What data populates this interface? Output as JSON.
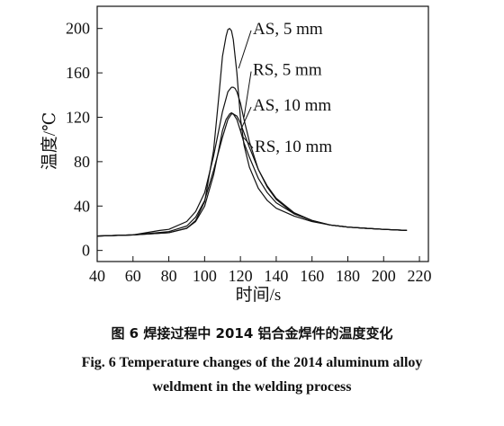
{
  "caption": {
    "cn": "图 6    焊接过程中 2014 铝合金焊件的温度变化",
    "en_line1": "Fig. 6    Temperature changes of the 2014 aluminum alloy",
    "en_line2": "weldment in the welding process"
  },
  "chart_data": {
    "type": "line",
    "title": "",
    "xlabel": "时间/s",
    "ylabel": "温度/℃",
    "xlim": [
      40,
      225
    ],
    "ylim": [
      -10,
      220
    ],
    "xticks": [
      40,
      60,
      80,
      100,
      120,
      140,
      160,
      180,
      200,
      220
    ],
    "yticks": [
      0,
      40,
      80,
      120,
      160,
      200
    ],
    "grid": false,
    "series": [
      {
        "name": "AS, 5 mm",
        "x": [
          40,
          60,
          80,
          90,
          95,
          100,
          105,
          108,
          110,
          112,
          113,
          114,
          115,
          116,
          118,
          120,
          122,
          125,
          130,
          135,
          140,
          150,
          160,
          170,
          180,
          190,
          200,
          213
        ],
        "y": [
          13,
          14,
          16,
          20,
          27,
          44,
          90,
          140,
          175,
          193,
          199,
          200,
          198,
          190,
          160,
          120,
          95,
          75,
          56,
          45,
          38,
          31,
          26,
          23,
          21,
          20,
          19,
          18
        ]
      },
      {
        "name": "RS, 5 mm",
        "x": [
          40,
          60,
          75,
          80,
          90,
          95,
          100,
          105,
          110,
          113,
          115,
          116,
          117,
          118,
          120,
          122,
          125,
          130,
          135,
          140,
          150,
          160,
          170,
          180,
          190,
          200,
          213
        ],
        "y": [
          13,
          14,
          18,
          19,
          26,
          35,
          52,
          85,
          125,
          143,
          147,
          147,
          146,
          143,
          133,
          118,
          98,
          73,
          57,
          46,
          33,
          27,
          23,
          21,
          20,
          19,
          18
        ]
      },
      {
        "name": "AS, 10 mm",
        "x": [
          40,
          60,
          80,
          90,
          95,
          100,
          105,
          108,
          110,
          112,
          114,
          115,
          116,
          118,
          120,
          122,
          125,
          130,
          135,
          140,
          150,
          160,
          170,
          180,
          190,
          200,
          213
        ],
        "y": [
          13,
          14,
          16,
          20,
          26,
          40,
          68,
          92,
          108,
          118,
          123,
          124,
          123,
          118,
          108,
          97,
          84,
          65,
          52,
          43,
          33,
          27,
          23,
          21,
          20,
          19,
          18
        ]
      },
      {
        "name": "RS, 10 mm",
        "x": [
          40,
          60,
          80,
          90,
          95,
          100,
          105,
          110,
          113,
          115,
          116,
          118,
          120,
          122,
          125,
          130,
          135,
          140,
          150,
          160,
          170,
          180,
          190,
          200,
          213
        ],
        "y": [
          13,
          14,
          17,
          22,
          30,
          45,
          72,
          102,
          118,
          123,
          123,
          121,
          115,
          106,
          93,
          73,
          58,
          47,
          34,
          27,
          23,
          21,
          20,
          19,
          18
        ]
      }
    ]
  }
}
